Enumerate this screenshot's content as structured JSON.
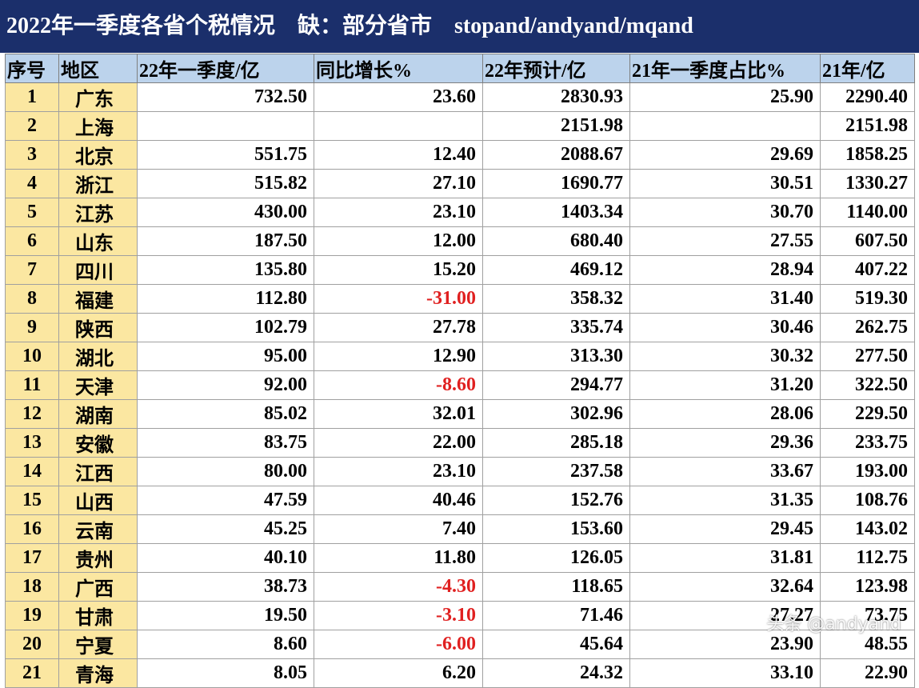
{
  "title": "2022年一季度各省个税情况　缺：部分省市　stopand/andyand/mqand",
  "headers": [
    "序号",
    "地区",
    "22年一季度/亿",
    "同比增长%",
    "22年预计/亿",
    "21年一季度占比%",
    "21年/亿"
  ],
  "rows": [
    {
      "idx": "1",
      "region": "广东",
      "q1_2022": "732.50",
      "yoy": "23.60",
      "est_2022": "2830.93",
      "q1_share_2021": "25.90",
      "y2021": "2290.40"
    },
    {
      "idx": "2",
      "region": "上海",
      "q1_2022": "",
      "yoy": "",
      "est_2022": "2151.98",
      "q1_share_2021": "",
      "y2021": "2151.98"
    },
    {
      "idx": "3",
      "region": "北京",
      "q1_2022": "551.75",
      "yoy": "12.40",
      "est_2022": "2088.67",
      "q1_share_2021": "29.69",
      "y2021": "1858.25"
    },
    {
      "idx": "4",
      "region": "浙江",
      "q1_2022": "515.82",
      "yoy": "27.10",
      "est_2022": "1690.77",
      "q1_share_2021": "30.51",
      "y2021": "1330.27"
    },
    {
      "idx": "5",
      "region": "江苏",
      "q1_2022": "430.00",
      "yoy": "23.10",
      "est_2022": "1403.34",
      "q1_share_2021": "30.70",
      "y2021": "1140.00"
    },
    {
      "idx": "6",
      "region": "山东",
      "q1_2022": "187.50",
      "yoy": "12.00",
      "est_2022": "680.40",
      "q1_share_2021": "27.55",
      "y2021": "607.50"
    },
    {
      "idx": "7",
      "region": "四川",
      "q1_2022": "135.80",
      "yoy": "15.20",
      "est_2022": "469.12",
      "q1_share_2021": "28.94",
      "y2021": "407.22"
    },
    {
      "idx": "8",
      "region": "福建",
      "q1_2022": "112.80",
      "yoy": "-31.00",
      "est_2022": "358.32",
      "q1_share_2021": "31.40",
      "y2021": "519.30"
    },
    {
      "idx": "9",
      "region": "陕西",
      "q1_2022": "102.79",
      "yoy": "27.78",
      "est_2022": "335.74",
      "q1_share_2021": "30.46",
      "y2021": "262.75"
    },
    {
      "idx": "10",
      "region": "湖北",
      "q1_2022": "95.00",
      "yoy": "12.90",
      "est_2022": "313.30",
      "q1_share_2021": "30.32",
      "y2021": "277.50"
    },
    {
      "idx": "11",
      "region": "天津",
      "q1_2022": "92.00",
      "yoy": "-8.60",
      "est_2022": "294.77",
      "q1_share_2021": "31.20",
      "y2021": "322.50"
    },
    {
      "idx": "12",
      "region": "湖南",
      "q1_2022": "85.02",
      "yoy": "32.01",
      "est_2022": "302.96",
      "q1_share_2021": "28.06",
      "y2021": "229.50"
    },
    {
      "idx": "13",
      "region": "安徽",
      "q1_2022": "83.75",
      "yoy": "22.00",
      "est_2022": "285.18",
      "q1_share_2021": "29.36",
      "y2021": "233.75"
    },
    {
      "idx": "14",
      "region": "江西",
      "q1_2022": "80.00",
      "yoy": "23.10",
      "est_2022": "237.58",
      "q1_share_2021": "33.67",
      "y2021": "193.00"
    },
    {
      "idx": "15",
      "region": "山西",
      "q1_2022": "47.59",
      "yoy": "40.46",
      "est_2022": "152.76",
      "q1_share_2021": "31.35",
      "y2021": "108.76"
    },
    {
      "idx": "16",
      "region": "云南",
      "q1_2022": "45.25",
      "yoy": "7.40",
      "est_2022": "153.60",
      "q1_share_2021": "29.45",
      "y2021": "143.02"
    },
    {
      "idx": "17",
      "region": "贵州",
      "q1_2022": "40.10",
      "yoy": "11.80",
      "est_2022": "126.05",
      "q1_share_2021": "31.81",
      "y2021": "112.75"
    },
    {
      "idx": "18",
      "region": "广西",
      "q1_2022": "38.73",
      "yoy": "-4.30",
      "est_2022": "118.65",
      "q1_share_2021": "32.64",
      "y2021": "123.98"
    },
    {
      "idx": "19",
      "region": "甘肃",
      "q1_2022": "19.50",
      "yoy": "-3.10",
      "est_2022": "71.46",
      "q1_share_2021": "27.27",
      "y2021": "73.75"
    },
    {
      "idx": "20",
      "region": "宁夏",
      "q1_2022": "8.60",
      "yoy": "-6.00",
      "est_2022": "45.64",
      "q1_share_2021": "23.90",
      "y2021": "48.55"
    },
    {
      "idx": "21",
      "region": "青海",
      "q1_2022": "8.05",
      "yoy": "6.20",
      "est_2022": "24.32",
      "q1_share_2021": "33.10",
      "y2021": "22.90"
    }
  ],
  "watermark": "头条 @andyand",
  "colors": {
    "title_bg": "#1b2f6b",
    "header_bg": "#bcd3ec",
    "index_bg": "#fbe7a1",
    "negative": "#e02020"
  }
}
